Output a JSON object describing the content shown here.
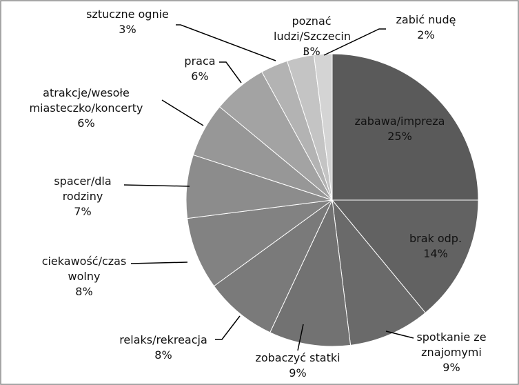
{
  "chart_data": {
    "type": "pie",
    "categories": [
      "zabawa/impreza",
      "brak odp.",
      "spotkanie ze znajomymi",
      "zobaczyć statki",
      "relaks/rekreacja",
      "ciekawość/czas wolny",
      "spacer/dla rodziny",
      "atrakcje/wesołe miasteczko/koncerty",
      "praca",
      "sztuczne ognie",
      "poznać ludzi/Szczecin",
      "zabić nudę"
    ],
    "values": [
      25,
      14,
      9,
      9,
      8,
      8,
      7,
      6,
      6,
      3,
      3,
      2
    ],
    "value_labels": [
      "25%",
      "14%",
      "9%",
      "9%",
      "8%",
      "8%",
      "7%",
      "6%",
      "6%",
      "3%",
      "3%",
      "2%"
    ],
    "colors": [
      "#5a5a5a",
      "#626262",
      "#6a6a6a",
      "#727272",
      "#7a7a7a",
      "#828282",
      "#8c8c8c",
      "#979797",
      "#a3a3a3",
      "#b3b3b3",
      "#c4c4c4",
      "#d4d4d4"
    ]
  }
}
